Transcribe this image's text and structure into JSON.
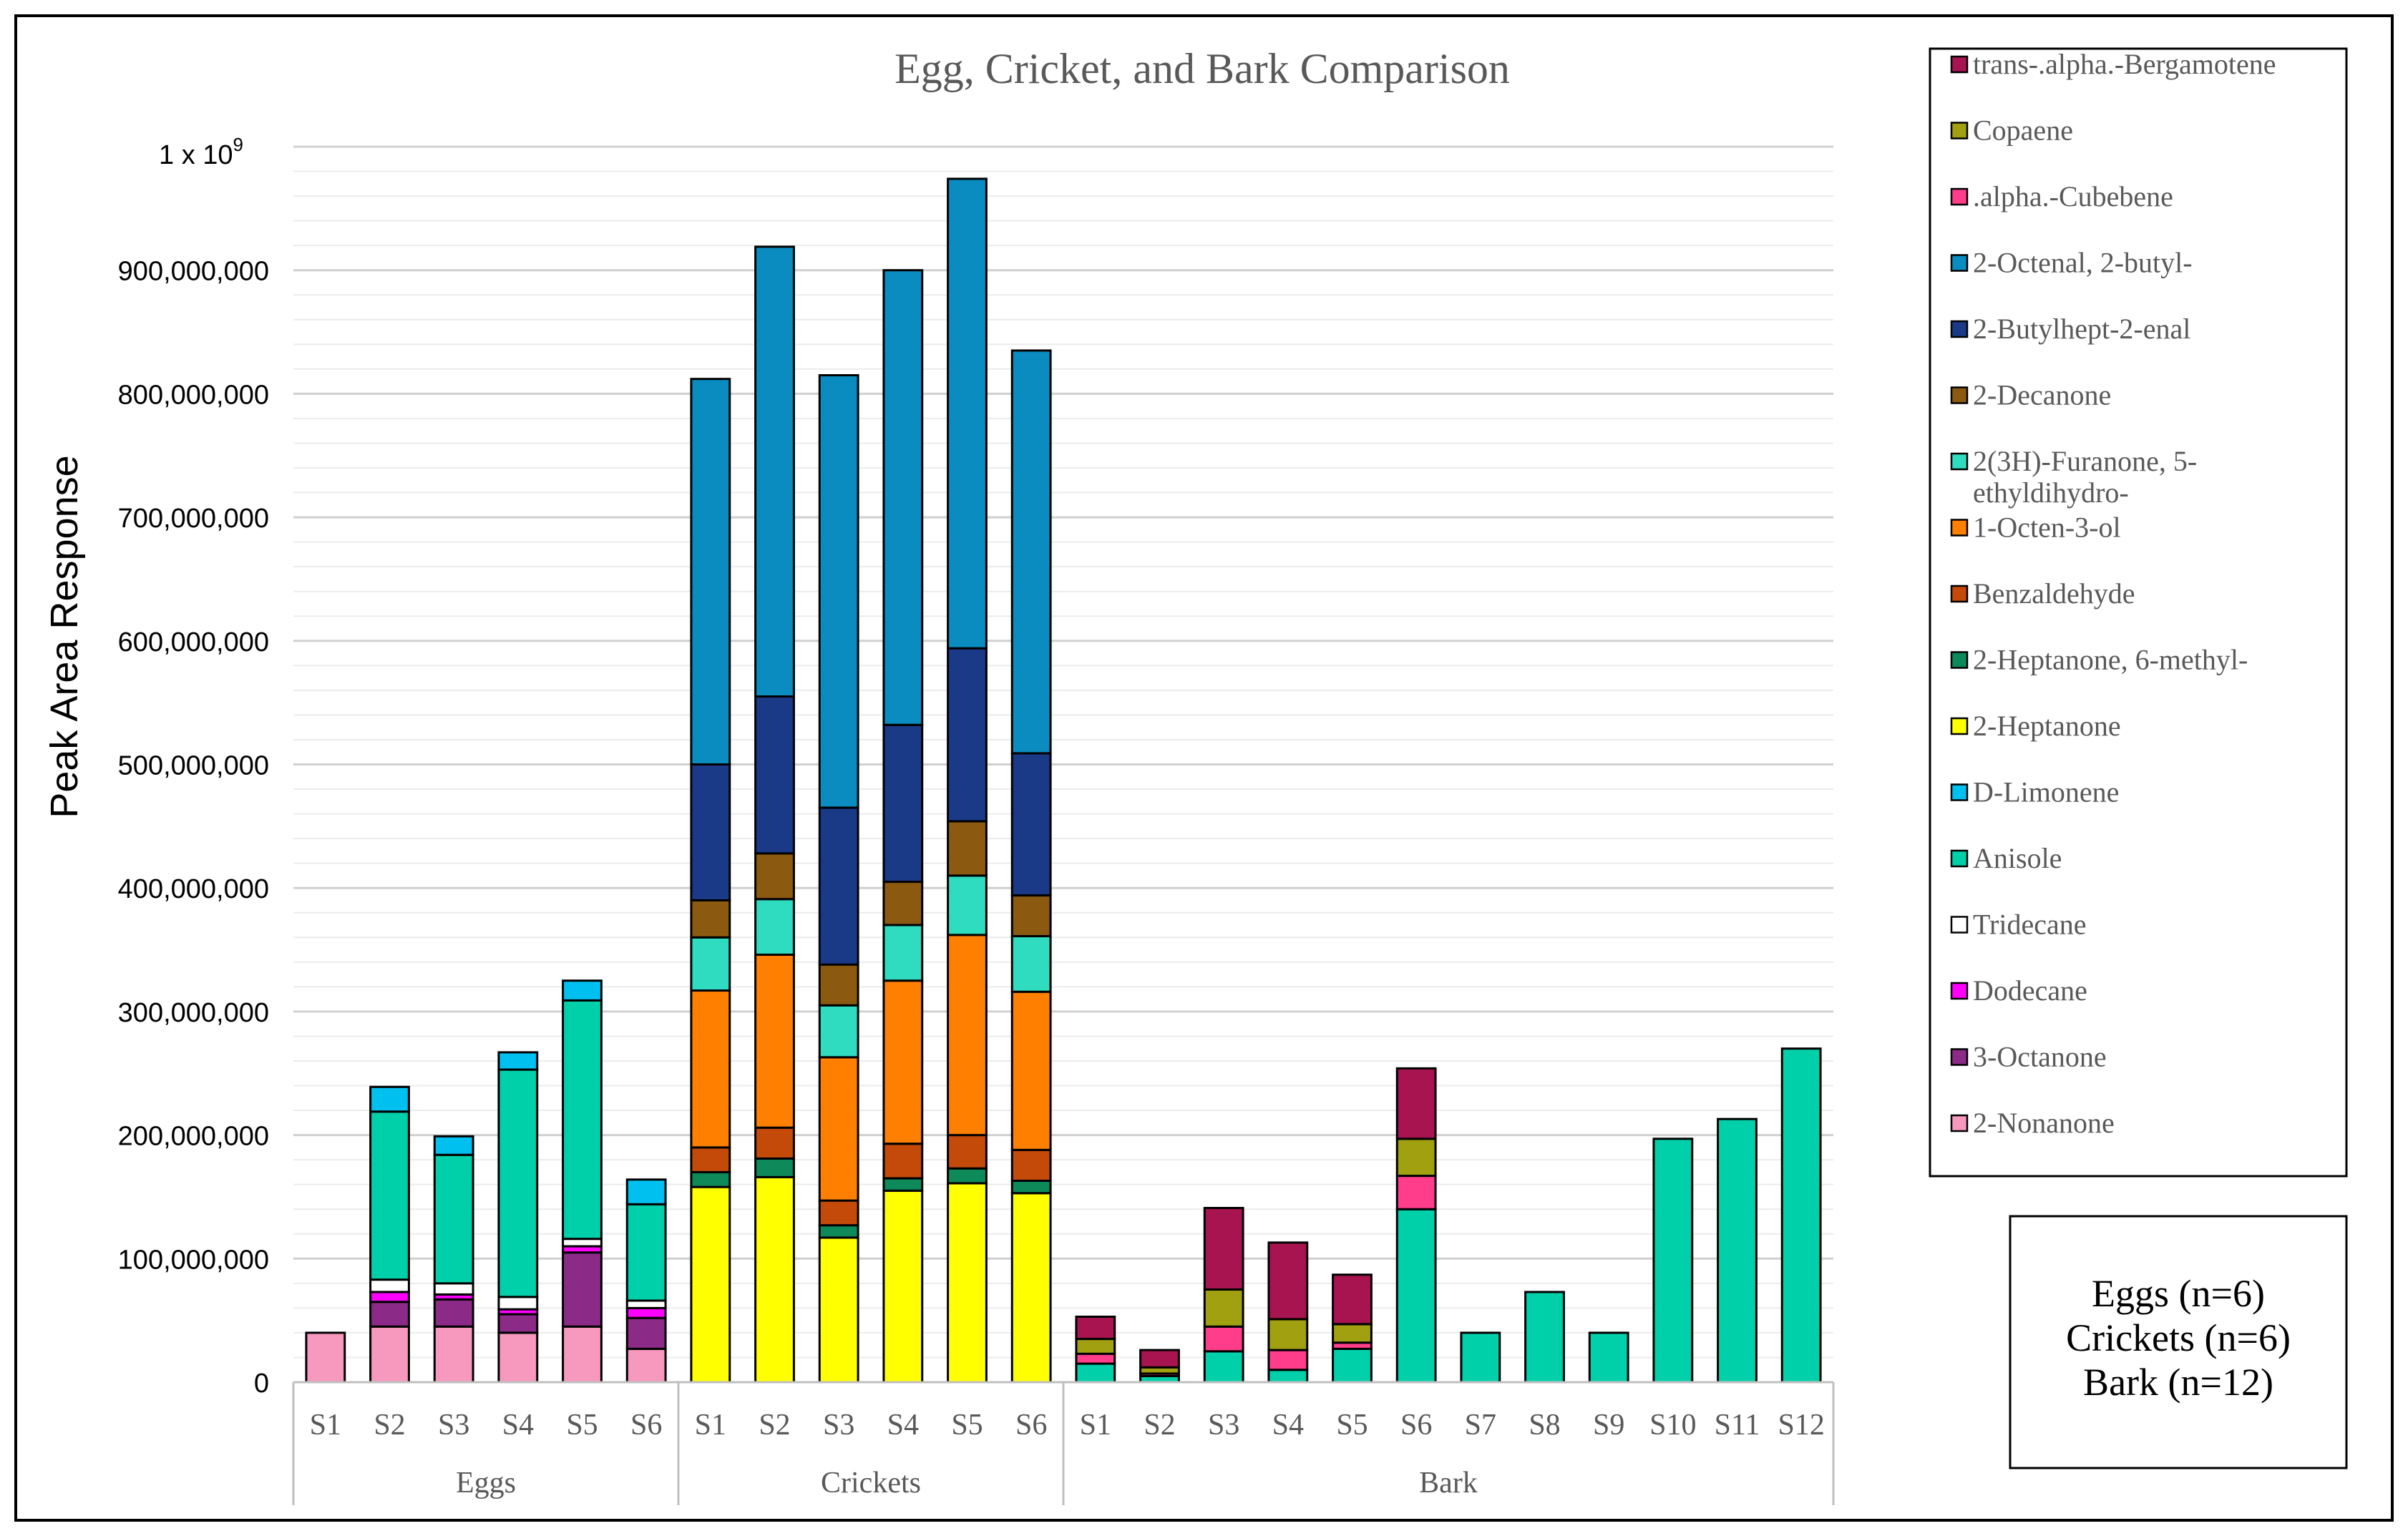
{
  "chart_data": {
    "type": "bar",
    "stacked": true,
    "title": "Egg, Cricket, and Bark Comparison",
    "xlabel": "",
    "ylabel": "Peak Area Response",
    "ylim": [
      0,
      1000000000
    ],
    "y_ticks": [
      "0",
      "100,000,000",
      "200,000,000",
      "300,000,000",
      "400,000,000",
      "500,000,000",
      "600,000,000",
      "700,000,000",
      "800,000,000",
      "900,000,000"
    ],
    "y_top_label": {
      "base": "1 x 10",
      "exponent": "9"
    },
    "grid": true,
    "legend_position": "right",
    "groups": [
      {
        "name": "Eggs",
        "samples": [
          "S1",
          "S2",
          "S3",
          "S4",
          "S5",
          "S6"
        ]
      },
      {
        "name": "Crickets",
        "samples": [
          "S1",
          "S2",
          "S3",
          "S4",
          "S5",
          "S6"
        ]
      },
      {
        "name": "Bark",
        "samples": [
          "S1",
          "S2",
          "S3",
          "S4",
          "S5",
          "S6",
          "S7",
          "S8",
          "S9",
          "S10",
          "S11",
          "S12"
        ]
      }
    ],
    "series": [
      {
        "name": "2-Nonanone",
        "color": "#f799be",
        "values": [
          40000000,
          45000000,
          45000000,
          40000000,
          45000000,
          27000000,
          0,
          0,
          0,
          0,
          0,
          0,
          0,
          0,
          0,
          0,
          0,
          0,
          0,
          0,
          0,
          0,
          0,
          0
        ]
      },
      {
        "name": "3-Octanone",
        "color": "#8b2a87",
        "values": [
          0,
          20000000,
          22000000,
          15000000,
          60000000,
          25000000,
          0,
          0,
          0,
          0,
          0,
          0,
          0,
          0,
          0,
          0,
          0,
          0,
          0,
          0,
          0,
          0,
          0,
          0
        ]
      },
      {
        "name": "Dodecane",
        "color": "#ff00ff",
        "values": [
          0,
          8000000,
          4000000,
          4000000,
          5000000,
          8000000,
          0,
          0,
          0,
          0,
          0,
          0,
          0,
          0,
          0,
          0,
          0,
          0,
          0,
          0,
          0,
          0,
          0,
          0
        ]
      },
      {
        "name": "Tridecane",
        "color": "#ffffff",
        "values": [
          0,
          10000000,
          9000000,
          10000000,
          6000000,
          6000000,
          0,
          0,
          0,
          0,
          0,
          0,
          0,
          0,
          0,
          0,
          0,
          0,
          0,
          0,
          0,
          0,
          0,
          0
        ]
      },
      {
        "name": "Anisole",
        "color": "#00d0aa",
        "values": [
          0,
          136000000,
          104000000,
          184000000,
          193000000,
          78000000,
          0,
          0,
          0,
          0,
          0,
          0,
          15000000,
          5000000,
          25000000,
          10000000,
          27000000,
          140000000,
          40000000,
          73000000,
          40000000,
          197000000,
          213000000,
          270000000
        ]
      },
      {
        "name": "D-Limonene",
        "color": "#00c0f0",
        "values": [
          0,
          20000000,
          15000000,
          14000000,
          16000000,
          20000000,
          0,
          0,
          0,
          0,
          0,
          0,
          0,
          0,
          0,
          0,
          0,
          0,
          0,
          0,
          0,
          0,
          0,
          0
        ]
      },
      {
        "name": "2-Heptanone",
        "color": "#ffff00",
        "values": [
          0,
          0,
          0,
          0,
          0,
          0,
          158000000,
          166000000,
          117000000,
          155000000,
          161000000,
          153000000,
          0,
          0,
          0,
          0,
          0,
          0,
          0,
          0,
          0,
          0,
          0,
          0
        ]
      },
      {
        "name": "2-Heptanone, 6-methyl-",
        "color": "#0e8a5a",
        "values": [
          0,
          0,
          0,
          0,
          0,
          0,
          12000000,
          15000000,
          10000000,
          10000000,
          12000000,
          10000000,
          0,
          0,
          0,
          0,
          0,
          0,
          0,
          0,
          0,
          0,
          0,
          0
        ]
      },
      {
        "name": "Benzaldehyde",
        "color": "#c44a0a",
        "values": [
          0,
          0,
          0,
          0,
          0,
          0,
          20000000,
          25000000,
          20000000,
          28000000,
          27000000,
          25000000,
          0,
          0,
          0,
          0,
          0,
          0,
          0,
          0,
          0,
          0,
          0,
          0
        ]
      },
      {
        "name": "1-Octen-3-ol",
        "color": "#ff8000",
        "values": [
          0,
          0,
          0,
          0,
          0,
          0,
          127000000,
          140000000,
          116000000,
          132000000,
          162000000,
          128000000,
          0,
          0,
          0,
          0,
          0,
          0,
          0,
          0,
          0,
          0,
          0,
          0
        ]
      },
      {
        "name": "2(3H)-Furanone, 5-ethyldihydro-",
        "color": "#30dcc0",
        "values": [
          0,
          0,
          0,
          0,
          0,
          0,
          43000000,
          45000000,
          42000000,
          45000000,
          48000000,
          45000000,
          0,
          0,
          0,
          0,
          0,
          0,
          0,
          0,
          0,
          0,
          0,
          0
        ]
      },
      {
        "name": "2-Decanone",
        "color": "#8b5a10",
        "values": [
          0,
          0,
          0,
          0,
          0,
          0,
          30000000,
          37000000,
          33000000,
          35000000,
          44000000,
          33000000,
          0,
          0,
          0,
          0,
          0,
          0,
          0,
          0,
          0,
          0,
          0,
          0
        ]
      },
      {
        "name": "2-Butylhept-2-enal",
        "color": "#1a3a88",
        "values": [
          0,
          0,
          0,
          0,
          0,
          0,
          110000000,
          127000000,
          127000000,
          127000000,
          140000000,
          115000000,
          0,
          0,
          0,
          0,
          0,
          0,
          0,
          0,
          0,
          0,
          0,
          0
        ]
      },
      {
        "name": "2-Octenal, 2-butyl-",
        "color": "#0a8cc0",
        "values": [
          0,
          0,
          0,
          0,
          0,
          0,
          312000000,
          364000000,
          350000000,
          368000000,
          380000000,
          326000000,
          0,
          0,
          0,
          0,
          0,
          0,
          0,
          0,
          0,
          0,
          0,
          0
        ]
      },
      {
        "name": ".alpha.-Cubebene",
        "color": "#ff3d8a",
        "values": [
          0,
          0,
          0,
          0,
          0,
          0,
          0,
          0,
          0,
          0,
          0,
          0,
          8000000,
          2000000,
          20000000,
          16000000,
          5000000,
          27000000,
          0,
          0,
          0,
          0,
          0,
          0
        ]
      },
      {
        "name": "Copaene",
        "color": "#a0a010",
        "values": [
          0,
          0,
          0,
          0,
          0,
          0,
          0,
          0,
          0,
          0,
          0,
          0,
          12000000,
          5000000,
          30000000,
          25000000,
          15000000,
          30000000,
          0,
          0,
          0,
          0,
          0,
          0
        ]
      },
      {
        "name": "trans-.alpha.-Bergamotene",
        "color": "#a81450",
        "values": [
          0,
          0,
          0,
          0,
          0,
          0,
          0,
          0,
          0,
          0,
          0,
          0,
          18000000,
          14000000,
          66000000,
          62000000,
          40000000,
          57000000,
          0,
          0,
          0,
          0,
          0,
          0
        ]
      }
    ],
    "legend_order": [
      "trans-.alpha.-Bergamotene",
      "Copaene",
      ".alpha.-Cubebene",
      "2-Octenal, 2-butyl-",
      "2-Butylhept-2-enal",
      "2-Decanone",
      "2(3H)-Furanone, 5-ethyldihydro-",
      "1-Octen-3-ol",
      "Benzaldehyde",
      "2-Heptanone, 6-methyl-",
      "2-Heptanone",
      "D-Limonene",
      "Anisole",
      "Tridecane",
      "Dodecane",
      "3-Octanone",
      "2-Nonanone"
    ],
    "legend_display": {
      "2(3H)-Furanone, 5-ethyldihydro-": [
        "2(3H)-Furanone, 5-",
        "ethyldihydro-"
      ]
    },
    "info_box": [
      "Eggs (n=6)",
      "Crickets (n=6)",
      "Bark (n=12)"
    ]
  }
}
